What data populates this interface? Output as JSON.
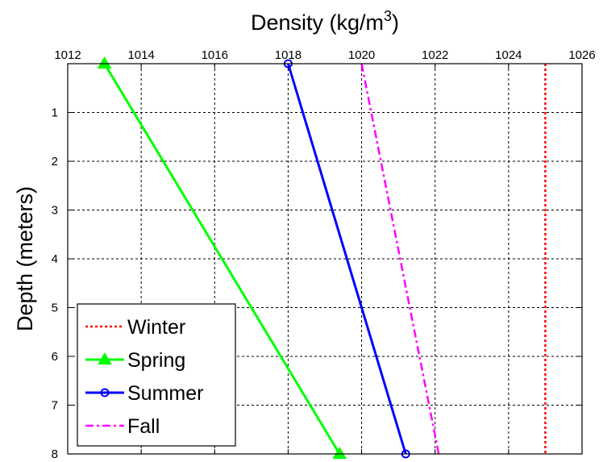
{
  "chart_data": {
    "type": "line",
    "title": "",
    "xlabel": "Density (kg/m",
    "xlabel_superscript": "3",
    "xlabel_suffix": ")",
    "ylabel": "Depth (meters)",
    "x_axis_position": "top",
    "y_axis_reversed": true,
    "xlim": [
      1012,
      1026
    ],
    "ylim": [
      0,
      8
    ],
    "xticks": [
      "1012",
      "1014",
      "1016",
      "1018",
      "1020",
      "1022",
      "1024",
      "1026"
    ],
    "yticks": [
      "1",
      "2",
      "3",
      "4",
      "5",
      "6",
      "7",
      "8"
    ],
    "grid": true,
    "legend_position": "bottom-left",
    "series": [
      {
        "name": "Winter",
        "color": "#ff0000",
        "style": "dotted",
        "marker": "none",
        "points": [
          [
            1025,
            0
          ],
          [
            1025,
            8
          ]
        ]
      },
      {
        "name": "Spring",
        "color": "#00ff00",
        "style": "solid",
        "marker": "triangle",
        "points": [
          [
            1013,
            0
          ],
          [
            1019.4,
            8
          ]
        ]
      },
      {
        "name": "Summer",
        "color": "#0000ff",
        "style": "solid",
        "marker": "circle",
        "points": [
          [
            1018,
            0
          ],
          [
            1021.2,
            8
          ]
        ]
      },
      {
        "name": "Fall",
        "color": "#ff00ff",
        "style": "dashdot",
        "marker": "none",
        "points": [
          [
            1020,
            0
          ],
          [
            1022.1,
            8
          ]
        ]
      }
    ]
  }
}
